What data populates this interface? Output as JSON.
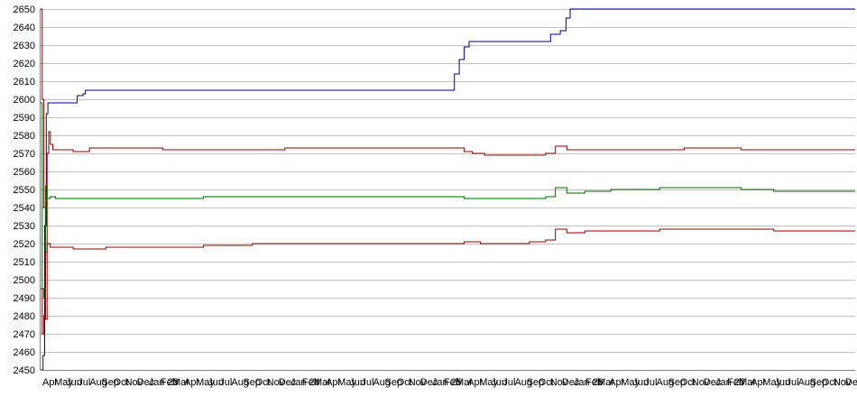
{
  "chart_data": {
    "type": "line",
    "title": "",
    "xlabel": "",
    "ylabel": "",
    "ylim": [
      2450,
      2650
    ],
    "yticks": [
      2450,
      2460,
      2470,
      2480,
      2490,
      2500,
      2510,
      2520,
      2530,
      2540,
      2550,
      2560,
      2570,
      2580,
      2590,
      2600,
      2610,
      2620,
      2630,
      2640,
      2650
    ],
    "grid": true,
    "legend": "none",
    "x_range": [
      0,
      1000
    ],
    "x_tick_labels": [
      "Apr",
      "May",
      "Jun",
      "Jul",
      "Aug",
      "Sep",
      "Oct",
      "Nov",
      "Dec",
      "Jan 23",
      "Feb",
      "Mar",
      "Apr",
      "May",
      "Jun",
      "Jul",
      "Aug",
      "Sep",
      "Oct",
      "Nov",
      "Dec",
      "Jan 24",
      "Feb",
      "Mar",
      "Apr",
      "May",
      "Jun",
      "Jul",
      "Aug",
      "Sep",
      "Oct",
      "Nov",
      "Dec",
      "Jan 25",
      "Feb",
      "Mar",
      "Apr",
      "May",
      "Jun",
      "Jul",
      "Aug",
      "Sep",
      "Oct",
      "Nov",
      "Dec",
      "Jan 26",
      "Feb",
      "Mar",
      "Apr",
      "May",
      "Jun",
      "Jul",
      "Aug",
      "Sep",
      "Oct",
      "Nov",
      "Dec",
      "Jan 27",
      "Feb",
      "Mar",
      "Apr",
      "May",
      "Jun",
      "Jul",
      "Aug",
      "Sep",
      "Oct",
      "Nov",
      "Dec"
    ],
    "series": [
      {
        "color": "#00008b",
        "points": [
          [
            0,
            2450
          ],
          [
            3,
            2458
          ],
          [
            5,
            2530
          ],
          [
            7,
            2592
          ],
          [
            9,
            2598
          ],
          [
            44,
            2598
          ],
          [
            45,
            2602
          ],
          [
            52,
            2603
          ],
          [
            55,
            2605
          ],
          [
            500,
            2605
          ],
          [
            508,
            2614
          ],
          [
            514,
            2622
          ],
          [
            520,
            2629
          ],
          [
            526,
            2632
          ],
          [
            620,
            2632
          ],
          [
            626,
            2636
          ],
          [
            638,
            2638
          ],
          [
            645,
            2645
          ],
          [
            650,
            2650
          ],
          [
            1000,
            2650
          ]
        ]
      },
      {
        "color": "#8b0000",
        "points": [
          [
            0,
            2650
          ],
          [
            2,
            2600
          ],
          [
            4,
            2540
          ],
          [
            6,
            2478
          ],
          [
            8,
            2570
          ],
          [
            10,
            2582
          ],
          [
            12,
            2575
          ],
          [
            15,
            2572
          ],
          [
            40,
            2571
          ],
          [
            60,
            2573
          ],
          [
            150,
            2572
          ],
          [
            270,
            2572
          ],
          [
            300,
            2573
          ],
          [
            440,
            2573
          ],
          [
            500,
            2573
          ],
          [
            520,
            2571
          ],
          [
            530,
            2570
          ],
          [
            545,
            2569
          ],
          [
            575,
            2569
          ],
          [
            620,
            2570
          ],
          [
            632,
            2574
          ],
          [
            646,
            2572
          ],
          [
            668,
            2572
          ],
          [
            700,
            2572
          ],
          [
            790,
            2573
          ],
          [
            860,
            2572
          ],
          [
            1000,
            2572
          ]
        ]
      },
      {
        "color": "#006400",
        "points": [
          [
            0,
            2598
          ],
          [
            2,
            2495
          ],
          [
            4,
            2490
          ],
          [
            6,
            2552
          ],
          [
            8,
            2545
          ],
          [
            12,
            2546
          ],
          [
            18,
            2545
          ],
          [
            40,
            2545
          ],
          [
            70,
            2545
          ],
          [
            100,
            2545
          ],
          [
            150,
            2545
          ],
          [
            200,
            2546
          ],
          [
            300,
            2546
          ],
          [
            400,
            2546
          ],
          [
            500,
            2546
          ],
          [
            520,
            2545
          ],
          [
            540,
            2545
          ],
          [
            560,
            2545
          ],
          [
            620,
            2546
          ],
          [
            632,
            2551
          ],
          [
            646,
            2548
          ],
          [
            668,
            2549
          ],
          [
            700,
            2550
          ],
          [
            760,
            2551
          ],
          [
            860,
            2550
          ],
          [
            900,
            2549
          ],
          [
            1000,
            2549
          ]
        ]
      },
      {
        "color": "#8b0000",
        "points": [
          [
            0,
            2495
          ],
          [
            2,
            2470
          ],
          [
            4,
            2480
          ],
          [
            6,
            2515
          ],
          [
            8,
            2520
          ],
          [
            12,
            2518
          ],
          [
            20,
            2518
          ],
          [
            40,
            2517
          ],
          [
            80,
            2518
          ],
          [
            150,
            2518
          ],
          [
            200,
            2519
          ],
          [
            260,
            2520
          ],
          [
            300,
            2520
          ],
          [
            400,
            2520
          ],
          [
            500,
            2520
          ],
          [
            520,
            2521
          ],
          [
            540,
            2520
          ],
          [
            600,
            2521
          ],
          [
            620,
            2522
          ],
          [
            632,
            2528
          ],
          [
            646,
            2526
          ],
          [
            668,
            2527
          ],
          [
            700,
            2527
          ],
          [
            760,
            2528
          ],
          [
            860,
            2528
          ],
          [
            900,
            2527
          ],
          [
            1000,
            2527
          ]
        ]
      }
    ]
  }
}
